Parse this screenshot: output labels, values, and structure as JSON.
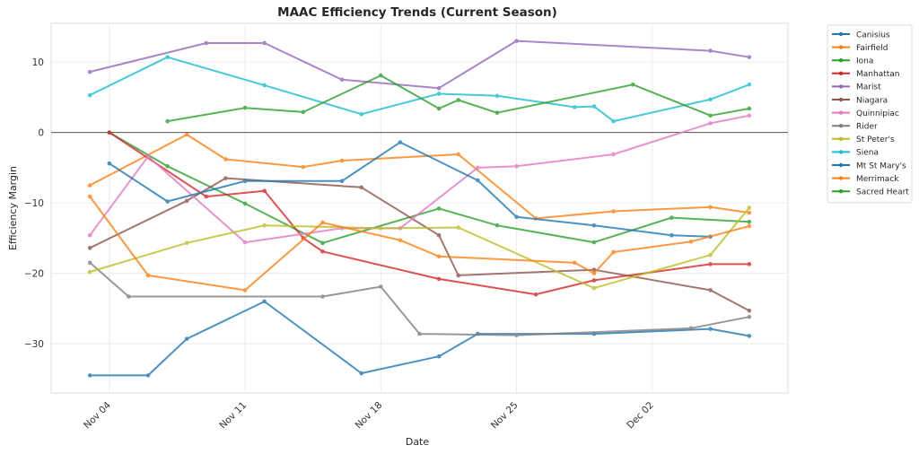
{
  "chart_data": {
    "type": "line",
    "title": "MAAC Efficiency Trends (Current Season)",
    "xlabel": "Date",
    "ylabel": "Efficiency Margin",
    "x_tick_labels": [
      "Nov 04",
      "Nov 11",
      "Nov 18",
      "Nov 25",
      "Dec 02"
    ],
    "x_tick_dates": [
      "2024-11-04",
      "2024-11-11",
      "2024-11-18",
      "2024-11-25",
      "2024-12-02"
    ],
    "xlim": [
      "2024-11-01",
      "2024-12-09"
    ],
    "y_ticks": [
      -30,
      -20,
      -10,
      0,
      10
    ],
    "ylim": [
      -37,
      15.5
    ],
    "grid": true,
    "zero_line": true,
    "legend_position": "outside-top-right",
    "series": [
      {
        "name": "Canisius",
        "color": "#1f77b4",
        "points": [
          [
            "2024-11-03",
            -34.5
          ],
          [
            "2024-11-06",
            -34.5
          ],
          [
            "2024-11-08",
            -29.3
          ],
          [
            "2024-11-12",
            -24.0
          ],
          [
            "2024-11-17",
            -34.2
          ],
          [
            "2024-11-21",
            -31.8
          ],
          [
            "2024-11-23",
            -28.6
          ],
          [
            "2024-11-29",
            -28.6
          ],
          [
            "2024-12-05",
            -27.9
          ],
          [
            "2024-12-07",
            -28.9
          ]
        ]
      },
      {
        "name": "Fairfield",
        "color": "#ff7f0e",
        "points": [
          [
            "2024-11-03",
            -7.5
          ],
          [
            "2024-11-08",
            -0.3
          ],
          [
            "2024-11-10",
            -3.8
          ],
          [
            "2024-11-14",
            -4.9
          ],
          [
            "2024-11-16",
            -4.0
          ],
          [
            "2024-11-22",
            -3.1
          ],
          [
            "2024-11-26",
            -12.2
          ],
          [
            "2024-11-30",
            -11.2
          ],
          [
            "2024-12-05",
            -10.6
          ],
          [
            "2024-12-07",
            -11.4
          ]
        ]
      },
      {
        "name": "Iona",
        "color": "#2ca02c",
        "points": [
          [
            "2024-11-04",
            0.0
          ],
          [
            "2024-11-07",
            -4.8
          ],
          [
            "2024-11-11",
            -10.1
          ],
          [
            "2024-11-15",
            -15.7
          ],
          [
            "2024-11-21",
            -10.8
          ],
          [
            "2024-11-24",
            -13.2
          ],
          [
            "2024-11-29",
            -15.6
          ],
          [
            "2024-12-03",
            -12.1
          ],
          [
            "2024-12-07",
            -12.7
          ]
        ]
      },
      {
        "name": "Manhattan",
        "color": "#d62728",
        "points": [
          [
            "2024-11-04",
            0.0
          ],
          [
            "2024-11-09",
            -9.1
          ],
          [
            "2024-11-12",
            -8.3
          ],
          [
            "2024-11-14",
            -15.0
          ],
          [
            "2024-11-15",
            -16.9
          ],
          [
            "2024-11-21",
            -20.8
          ],
          [
            "2024-11-26",
            -23.0
          ],
          [
            "2024-11-29",
            -21.0
          ],
          [
            "2024-12-05",
            -18.7
          ],
          [
            "2024-12-07",
            -18.7
          ]
        ]
      },
      {
        "name": "Marist",
        "color": "#9467bd",
        "points": [
          [
            "2024-11-03",
            8.6
          ],
          [
            "2024-11-09",
            12.7
          ],
          [
            "2024-11-12",
            12.7
          ],
          [
            "2024-11-16",
            7.5
          ],
          [
            "2024-11-21",
            6.3
          ],
          [
            "2024-11-25",
            13.0
          ],
          [
            "2024-12-05",
            11.6
          ],
          [
            "2024-12-07",
            10.7
          ]
        ]
      },
      {
        "name": "Niagara",
        "color": "#8c564b",
        "points": [
          [
            "2024-11-03",
            -16.4
          ],
          [
            "2024-11-08",
            -9.7
          ],
          [
            "2024-11-10",
            -6.5
          ],
          [
            "2024-11-17",
            -7.8
          ],
          [
            "2024-11-21",
            -14.6
          ],
          [
            "2024-11-22",
            -20.3
          ],
          [
            "2024-11-29",
            -19.5
          ],
          [
            "2024-12-05",
            -22.4
          ],
          [
            "2024-12-07",
            -25.3
          ]
        ]
      },
      {
        "name": "Quinnipiac",
        "color": "#e377c2",
        "points": [
          [
            "2024-11-03",
            -14.6
          ],
          [
            "2024-11-06",
            -3.4
          ],
          [
            "2024-11-11",
            -15.6
          ],
          [
            "2024-11-16",
            -13.6
          ],
          [
            "2024-11-19",
            -13.6
          ],
          [
            "2024-11-23",
            -5.0
          ],
          [
            "2024-11-25",
            -4.8
          ],
          [
            "2024-11-30",
            -3.1
          ],
          [
            "2024-12-05",
            1.3
          ],
          [
            "2024-12-07",
            2.4
          ]
        ]
      },
      {
        "name": "Rider",
        "color": "#7f7f7f",
        "points": [
          [
            "2024-11-03",
            -18.5
          ],
          [
            "2024-11-05",
            -23.3
          ],
          [
            "2024-11-15",
            -23.3
          ],
          [
            "2024-11-18",
            -21.9
          ],
          [
            "2024-11-20",
            -28.6
          ],
          [
            "2024-11-25",
            -28.8
          ],
          [
            "2024-12-04",
            -27.8
          ],
          [
            "2024-12-07",
            -26.2
          ]
        ]
      },
      {
        "name": "St Peter's",
        "color": "#bcbd22",
        "points": [
          [
            "2024-11-03",
            -19.8
          ],
          [
            "2024-11-08",
            -15.7
          ],
          [
            "2024-11-12",
            -13.2
          ],
          [
            "2024-11-18",
            -13.6
          ],
          [
            "2024-11-22",
            -13.5
          ],
          [
            "2024-11-29",
            -22.1
          ],
          [
            "2024-12-05",
            -17.4
          ],
          [
            "2024-12-07",
            -10.7
          ]
        ]
      },
      {
        "name": "Siena",
        "color": "#17becf",
        "points": [
          [
            "2024-11-03",
            5.3
          ],
          [
            "2024-11-07",
            10.7
          ],
          [
            "2024-11-12",
            6.7
          ],
          [
            "2024-11-17",
            2.6
          ],
          [
            "2024-11-21",
            5.5
          ],
          [
            "2024-11-24",
            5.2
          ],
          [
            "2024-11-28",
            3.6
          ],
          [
            "2024-11-29",
            3.7
          ],
          [
            "2024-11-30",
            1.6
          ],
          [
            "2024-12-05",
            4.7
          ],
          [
            "2024-12-07",
            6.8
          ]
        ]
      },
      {
        "name": "Mt St Mary's",
        "color": "#1f77b4",
        "points": [
          [
            "2024-11-04",
            -4.4
          ],
          [
            "2024-11-07",
            -9.8
          ],
          [
            "2024-11-11",
            -6.9
          ],
          [
            "2024-11-16",
            -6.9
          ],
          [
            "2024-11-19",
            -1.4
          ],
          [
            "2024-11-23",
            -6.8
          ],
          [
            "2024-11-25",
            -12.0
          ],
          [
            "2024-11-29",
            -13.2
          ],
          [
            "2024-12-03",
            -14.6
          ],
          [
            "2024-12-05",
            -14.8
          ]
        ]
      },
      {
        "name": "Merrimack",
        "color": "#ff7f0e",
        "points": [
          [
            "2024-11-03",
            -9.1
          ],
          [
            "2024-11-06",
            -20.3
          ],
          [
            "2024-11-11",
            -22.4
          ],
          [
            "2024-11-15",
            -12.8
          ],
          [
            "2024-11-19",
            -15.3
          ],
          [
            "2024-11-21",
            -17.6
          ],
          [
            "2024-11-28",
            -18.5
          ],
          [
            "2024-11-29",
            -20.0
          ],
          [
            "2024-11-30",
            -17.0
          ],
          [
            "2024-12-04",
            -15.5
          ],
          [
            "2024-12-07",
            -13.3
          ]
        ]
      },
      {
        "name": "Sacred Heart",
        "color": "#2ca02c",
        "points": [
          [
            "2024-11-07",
            1.6
          ],
          [
            "2024-11-11",
            3.5
          ],
          [
            "2024-11-14",
            2.9
          ],
          [
            "2024-11-18",
            8.1
          ],
          [
            "2024-11-21",
            3.4
          ],
          [
            "2024-11-22",
            4.6
          ],
          [
            "2024-11-24",
            2.8
          ],
          [
            "2024-12-01",
            6.8
          ],
          [
            "2024-12-05",
            2.4
          ],
          [
            "2024-12-07",
            3.4
          ]
        ]
      }
    ]
  }
}
